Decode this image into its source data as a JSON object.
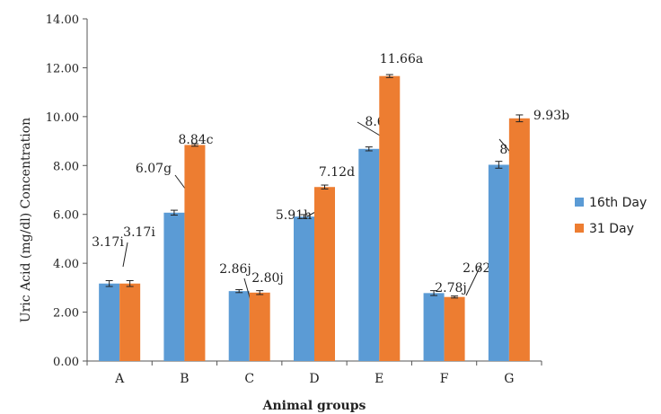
{
  "chart_data": {
    "type": "bar",
    "title": "",
    "xlabel": "Animal groups",
    "ylabel": "Uric Acid (mg/dl)  Concentration",
    "ylim": [
      0,
      14
    ],
    "ytick_labels": [
      "0.00",
      "2.00",
      "4.00",
      "6.00",
      "8.00",
      "10.00",
      "12.00",
      "14.00"
    ],
    "categories": [
      "A",
      "B",
      "C",
      "D",
      "E",
      "F",
      "G"
    ],
    "series": [
      {
        "name": "16th Day",
        "color": "#5b9bd5",
        "values": [
          3.17,
          6.07,
          2.86,
          5.91,
          8.68,
          2.78,
          8.03
        ],
        "errors": [
          0.12,
          0.1,
          0.06,
          0.08,
          0.08,
          0.1,
          0.14
        ],
        "labels": [
          "3.17i",
          "6.07g",
          "2.86j",
          "5.91h",
          "8.68",
          "2.78j",
          "8.03"
        ]
      },
      {
        "name": "31 Day",
        "color": "#ed7d31",
        "values": [
          3.17,
          8.84,
          2.8,
          7.12,
          11.66,
          2.62,
          9.93
        ],
        "errors": [
          0.12,
          0.05,
          0.08,
          0.08,
          0.06,
          0.04,
          0.14
        ],
        "labels": [
          "3.17i",
          "8.84c",
          "2.80j",
          "7.12d",
          "11.66a",
          "2.62k",
          "9.93b"
        ]
      }
    ],
    "grid": false,
    "legend": "right"
  }
}
